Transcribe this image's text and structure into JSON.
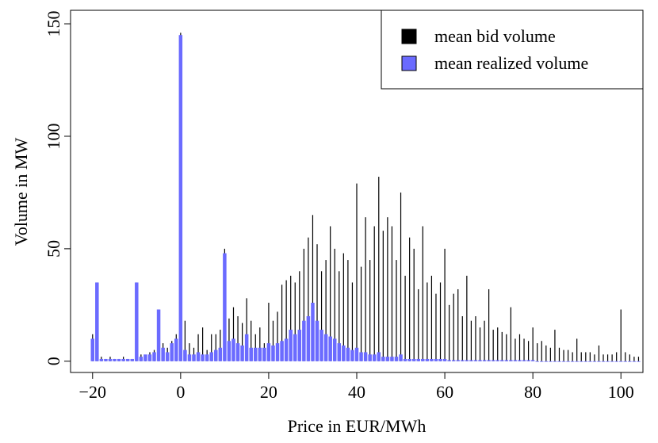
{
  "chart_data": {
    "type": "spike",
    "xlabel": "Price in EUR/MWh",
    "ylabel": "Volume in MW",
    "x": [
      -20,
      -19,
      -18,
      -17,
      -16,
      -15,
      -14,
      -13,
      -12,
      -11,
      -10,
      -9,
      -8,
      -7,
      -6,
      -5,
      -4,
      -3,
      -2,
      -1,
      0,
      1,
      2,
      3,
      4,
      5,
      6,
      7,
      8,
      9,
      10,
      11,
      12,
      13,
      14,
      15,
      16,
      17,
      18,
      19,
      20,
      21,
      22,
      23,
      24,
      25,
      26,
      27,
      28,
      29,
      30,
      31,
      32,
      33,
      34,
      35,
      36,
      37,
      38,
      39,
      40,
      41,
      42,
      43,
      44,
      45,
      46,
      47,
      48,
      49,
      50,
      51,
      52,
      53,
      54,
      55,
      56,
      57,
      58,
      59,
      60,
      61,
      62,
      63,
      64,
      65,
      66,
      67,
      68,
      69,
      70,
      71,
      72,
      73,
      74,
      75,
      76,
      77,
      78,
      79,
      80,
      81,
      82,
      83,
      84,
      85,
      86,
      87,
      88,
      89,
      90,
      91,
      92,
      93,
      94,
      95,
      96,
      97,
      98,
      99,
      100,
      101,
      102,
      103,
      104
    ],
    "series": [
      {
        "name": "mean bid volume",
        "color": "#000000",
        "values": [
          12,
          35,
          2,
          1,
          2,
          1,
          1,
          2,
          1,
          1,
          35,
          3,
          2,
          4,
          5,
          23,
          8,
          6,
          9,
          12,
          146,
          18,
          8,
          6,
          12,
          15,
          5,
          12,
          12,
          14,
          50,
          19,
          24,
          20,
          17,
          28,
          18,
          12,
          15,
          8,
          26,
          18,
          22,
          34,
          36,
          38,
          35,
          40,
          50,
          55,
          65,
          52,
          40,
          45,
          60,
          50,
          40,
          48,
          45,
          35,
          79,
          42,
          64,
          45,
          60,
          82,
          58,
          64,
          60,
          45,
          75,
          38,
          55,
          50,
          32,
          60,
          35,
          38,
          30,
          35,
          50,
          25,
          30,
          32,
          20,
          38,
          18,
          20,
          15,
          18,
          32,
          14,
          15,
          13,
          12,
          24,
          10,
          12,
          10,
          9,
          15,
          8,
          9,
          7,
          6,
          14,
          6,
          5,
          5,
          4,
          10,
          4,
          4,
          4,
          3,
          7,
          3,
          3,
          3,
          4,
          23,
          4,
          3,
          2,
          2
        ]
      },
      {
        "name": "mean realized volume",
        "color": "#6b6bff",
        "values": [
          10,
          35,
          1,
          1,
          1,
          1,
          1,
          1,
          1,
          1,
          35,
          2,
          3,
          3,
          4,
          23,
          6,
          4,
          8,
          10,
          145,
          5,
          3,
          3,
          4,
          3,
          3,
          4,
          5,
          6,
          48,
          9,
          10,
          8,
          7,
          12,
          6,
          6,
          6,
          6,
          8,
          7,
          8,
          9,
          10,
          14,
          12,
          14,
          18,
          20,
          26,
          18,
          14,
          12,
          11,
          10,
          8,
          7,
          6,
          5,
          6,
          4,
          4,
          3,
          3,
          4,
          2,
          2,
          2,
          2,
          3,
          1,
          1,
          1,
          1,
          1,
          1,
          1,
          1,
          1,
          1,
          0.5,
          0.5,
          0.5,
          0.5,
          0.5,
          0.5,
          0.5,
          0.5,
          0.5,
          0.5,
          0.5,
          0.5,
          0.5,
          0.5,
          0.5,
          0.5,
          0.5,
          0.5,
          0.5,
          0.5,
          0,
          0,
          0,
          0,
          0,
          0,
          0,
          0,
          0,
          0,
          0,
          0,
          0,
          0,
          0,
          0,
          0,
          0,
          0,
          0,
          0,
          0,
          0,
          0
        ]
      }
    ],
    "xlim": [
      -25,
      105
    ],
    "ylim": [
      -5,
      156
    ],
    "xticks": [
      {
        "value": -20,
        "label": "−20"
      },
      0,
      20,
      40,
      60,
      80,
      100
    ],
    "yticks": [
      0,
      50,
      100,
      150
    ],
    "legend": "topright"
  }
}
